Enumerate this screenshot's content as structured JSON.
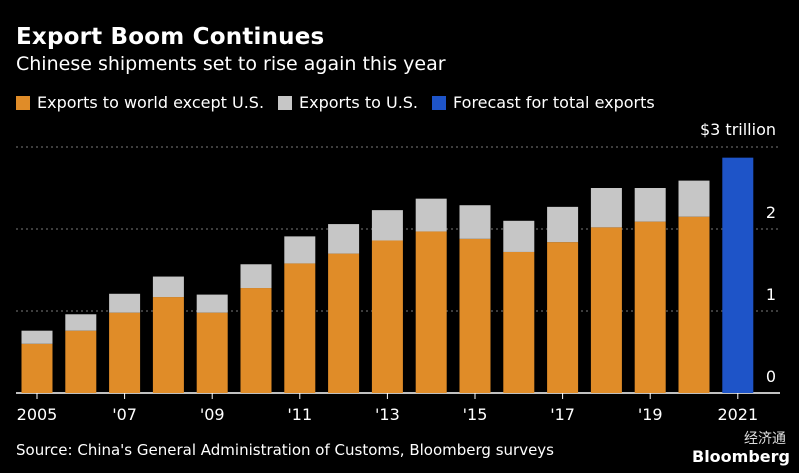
{
  "header": {
    "title": "Export Boom Continues",
    "subtitle": "Chinese shipments set to rise again this year"
  },
  "legend": {
    "items": [
      {
        "label": "Exports to world except U.S.",
        "color": "#e08c28"
      },
      {
        "label": "Exports to U.S.",
        "color": "#c6c6c6"
      },
      {
        "label": "Forecast for total exports",
        "color": "#1e54c8"
      }
    ]
  },
  "footer": {
    "source": "Source: China's General Administration of Customs, Bloomberg surveys"
  },
  "watermark": {
    "cn": "经济通",
    "logo": "Bloomberg"
  },
  "chart_data": {
    "type": "bar",
    "stacked": true,
    "categories": [
      "2005",
      "2006",
      "2007",
      "2008",
      "2009",
      "2010",
      "2011",
      "2012",
      "2013",
      "2014",
      "2015",
      "2016",
      "2017",
      "2018",
      "2019",
      "2020",
      "2021"
    ],
    "series": [
      {
        "name": "Exports to world except U.S.",
        "color": "#e08c28",
        "values": [
          0.6,
          0.76,
          0.98,
          1.17,
          0.98,
          1.28,
          1.58,
          1.7,
          1.86,
          1.97,
          1.88,
          1.72,
          1.84,
          2.02,
          2.09,
          2.15,
          null
        ]
      },
      {
        "name": "Exports to U.S.",
        "color": "#c6c6c6",
        "values": [
          0.16,
          0.2,
          0.23,
          0.25,
          0.22,
          0.29,
          0.33,
          0.36,
          0.37,
          0.4,
          0.41,
          0.38,
          0.43,
          0.48,
          0.41,
          0.44,
          null
        ]
      },
      {
        "name": "Forecast for total exports",
        "color": "#1e54c8",
        "values": [
          null,
          null,
          null,
          null,
          null,
          null,
          null,
          null,
          null,
          null,
          null,
          null,
          null,
          null,
          null,
          null,
          2.87
        ]
      }
    ],
    "x_tick_labels": [
      "2005",
      "'07",
      "'09",
      "'11",
      "'13",
      "'15",
      "'17",
      "'19",
      "2021"
    ],
    "x_tick_label_positions": [
      "2005",
      "2007",
      "2009",
      "2011",
      "2013",
      "2015",
      "2017",
      "2019",
      "2021"
    ],
    "y_ticks": [
      0,
      1,
      2,
      3
    ],
    "y_tick_labels": [
      "0",
      "1",
      "2",
      "$3 trillion"
    ],
    "ylim": [
      0,
      3
    ],
    "grid": "horizontal dotted",
    "legend_position": "top-left"
  }
}
